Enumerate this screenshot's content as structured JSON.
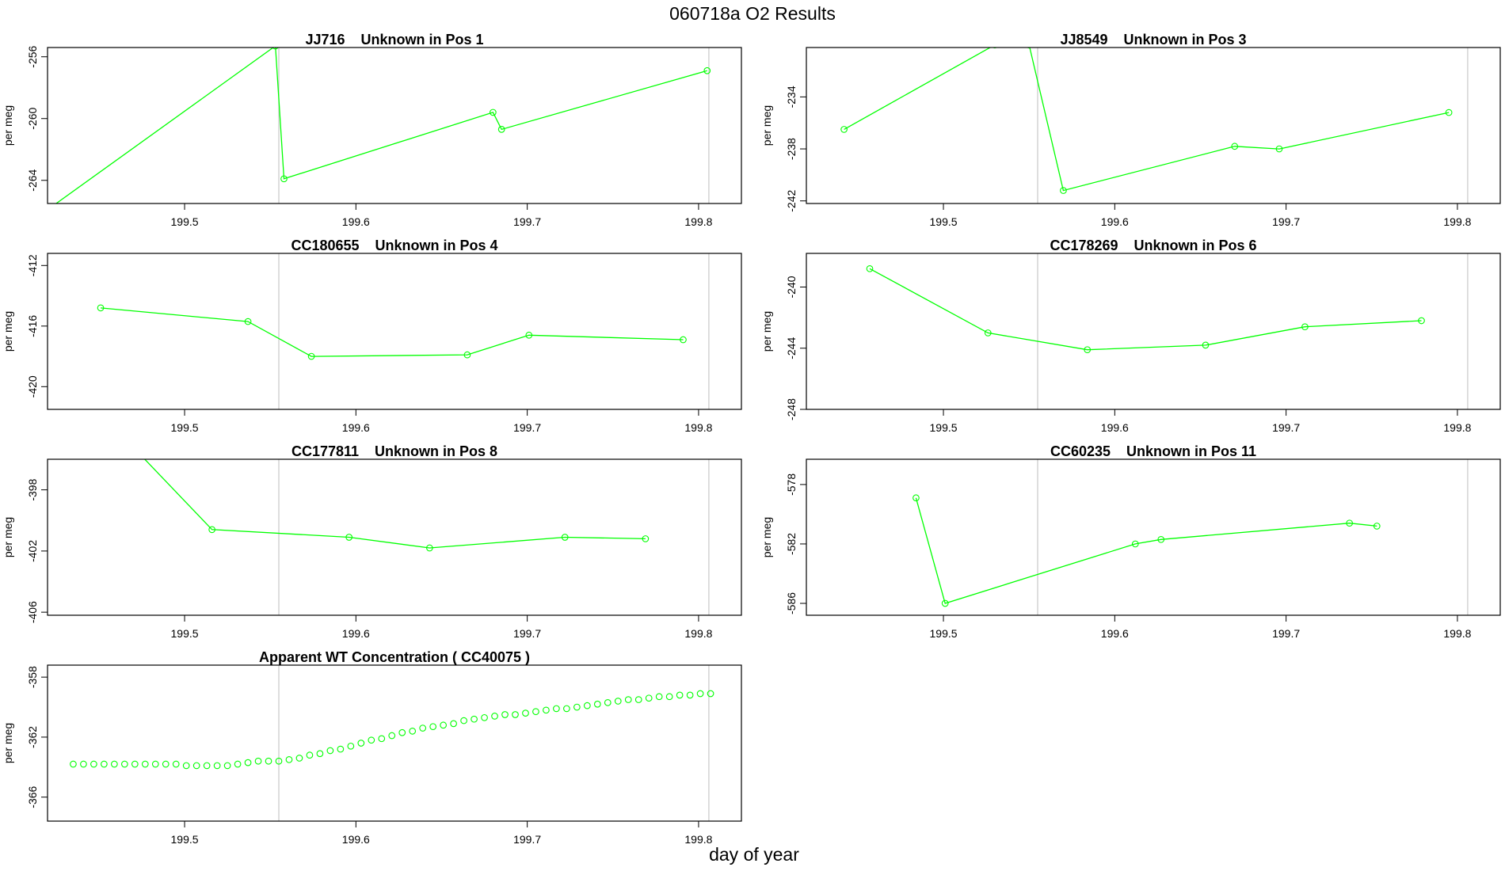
{
  "figure": {
    "title": "060718a  O2 Results",
    "xlabel": "day of year"
  },
  "chart_data": [
    {
      "type": "line",
      "title": "JJ716    Unknown in Pos 1",
      "ylabel": "per meg",
      "xlim": [
        199.42,
        199.825
      ],
      "ylim": [
        -265.5,
        -255.4
      ],
      "xticks": [
        199.5,
        199.6,
        199.7,
        199.8
      ],
      "yticks": [
        -256,
        -260,
        -264
      ],
      "vlines": [
        199.555,
        199.806
      ],
      "color": "#00ff00",
      "x": [
        199.4,
        199.553,
        199.558,
        199.68,
        199.685,
        199.805
      ],
      "y": [
        -267.5,
        -255.3,
        -263.9,
        -259.6,
        -260.7,
        -256.9
      ]
    },
    {
      "type": "line",
      "title": "JJ8549    Unknown in Pos 3",
      "ylabel": "per meg",
      "xlim": [
        199.42,
        199.825
      ],
      "ylim": [
        -242.2,
        -230.2
      ],
      "xticks": [
        199.5,
        199.6,
        199.7,
        199.8
      ],
      "yticks": [
        -234,
        -238,
        -242
      ],
      "vlines": [
        199.555,
        199.806
      ],
      "color": "#00ff00",
      "x": [
        199.442,
        199.53,
        199.55,
        199.57,
        199.67,
        199.696,
        199.795
      ],
      "y": [
        -236.5,
        -230.0,
        -230.0,
        -241.2,
        -237.8,
        -238.0,
        -235.2
      ]
    },
    {
      "type": "line",
      "title": "CC180655    Unknown in Pos 4",
      "ylabel": "per meg",
      "xlim": [
        199.42,
        199.825
      ],
      "ylim": [
        -421.5,
        -411.2
      ],
      "xticks": [
        199.5,
        199.6,
        199.7,
        199.8
      ],
      "yticks": [
        -412,
        -416,
        -420
      ],
      "vlines": [
        199.555,
        199.806
      ],
      "color": "#00ff00",
      "x": [
        199.451,
        199.537,
        199.574,
        199.665,
        199.701,
        199.791
      ],
      "y": [
        -414.8,
        -415.7,
        -418.0,
        -417.9,
        -416.6,
        -416.9
      ]
    },
    {
      "type": "line",
      "title": "CC178269    Unknown in Pos 6",
      "ylabel": "per meg",
      "xlim": [
        199.42,
        199.825
      ],
      "ylim": [
        -248.0,
        -237.8
      ],
      "xticks": [
        199.5,
        199.6,
        199.7,
        199.8
      ],
      "yticks": [
        -240,
        -244,
        -248
      ],
      "vlines": [
        199.555,
        199.806
      ],
      "color": "#00ff00",
      "x": [
        199.457,
        199.526,
        199.584,
        199.653,
        199.711,
        199.779
      ],
      "y": [
        -238.8,
        -243.0,
        -244.1,
        -243.8,
        -242.6,
        -242.2
      ]
    },
    {
      "type": "line",
      "title": "CC177811    Unknown in Pos 8",
      "ylabel": "per meg",
      "xlim": [
        199.42,
        199.825
      ],
      "ylim": [
        -406.2,
        -396.0
      ],
      "xticks": [
        199.5,
        199.6,
        199.7,
        199.8
      ],
      "yticks": [
        -398,
        -402,
        -406
      ],
      "vlines": [
        199.555,
        199.806
      ],
      "color": "#00ff00",
      "x": [
        199.4,
        199.516,
        199.596,
        199.643,
        199.722,
        199.769
      ],
      "y": [
        -387.0,
        -400.6,
        -401.1,
        -401.8,
        -401.1,
        -401.2
      ]
    },
    {
      "type": "line",
      "title": "CC60235    Unknown in Pos 11",
      "ylabel": "per meg",
      "xlim": [
        199.42,
        199.825
      ],
      "ylim": [
        -586.8,
        -576.3
      ],
      "xticks": [
        199.5,
        199.6,
        199.7,
        199.8
      ],
      "yticks": [
        -578,
        -582,
        -586
      ],
      "vlines": [
        199.555,
        199.806
      ],
      "color": "#00ff00",
      "x": [
        199.484,
        199.501,
        199.612,
        199.627,
        199.737,
        199.753
      ],
      "y": [
        -578.9,
        -586.0,
        -582.0,
        -581.7,
        -580.6,
        -580.8
      ]
    },
    {
      "type": "scatter",
      "title": "Apparent WT Concentration ( CC40075 )",
      "ylabel": "per meg",
      "xlim": [
        199.42,
        199.825
      ],
      "ylim": [
        -367.6,
        -357.2
      ],
      "xticks": [
        199.5,
        199.6,
        199.7,
        199.8
      ],
      "yticks": [
        -358,
        -362,
        -366
      ],
      "vlines": [
        199.555,
        199.806
      ],
      "color": "#00ff00",
      "x": [
        199.435,
        199.441,
        199.447,
        199.453,
        199.459,
        199.465,
        199.471,
        199.477,
        199.483,
        199.489,
        199.495,
        199.501,
        199.507,
        199.513,
        199.519,
        199.525,
        199.531,
        199.537,
        199.543,
        199.549,
        199.555,
        199.561,
        199.567,
        199.573,
        199.579,
        199.585,
        199.591,
        199.597,
        199.603,
        199.609,
        199.615,
        199.621,
        199.627,
        199.633,
        199.639,
        199.645,
        199.651,
        199.657,
        199.663,
        199.669,
        199.675,
        199.681,
        199.687,
        199.693,
        199.699,
        199.705,
        199.711,
        199.717,
        199.723,
        199.729,
        199.735,
        199.741,
        199.747,
        199.753,
        199.759,
        199.765,
        199.771,
        199.777,
        199.783,
        199.789,
        199.795,
        199.801,
        199.807
      ],
      "y": [
        -363.8,
        -363.8,
        -363.8,
        -363.8,
        -363.8,
        -363.8,
        -363.8,
        -363.8,
        -363.8,
        -363.8,
        -363.8,
        -363.9,
        -363.9,
        -363.9,
        -363.9,
        -363.9,
        -363.8,
        -363.7,
        -363.6,
        -363.6,
        -363.6,
        -363.5,
        -363.4,
        -363.2,
        -363.1,
        -362.9,
        -362.8,
        -362.6,
        -362.4,
        -362.2,
        -362.1,
        -361.9,
        -361.7,
        -361.6,
        -361.4,
        -361.3,
        -361.2,
        -361.1,
        -360.9,
        -360.8,
        -360.7,
        -360.6,
        -360.5,
        -360.5,
        -360.4,
        -360.3,
        -360.2,
        -360.1,
        -360.1,
        -360.0,
        -359.9,
        -359.8,
        -359.7,
        -359.6,
        -359.5,
        -359.5,
        -359.4,
        -359.3,
        -359.3,
        -359.2,
        -359.2,
        -359.1,
        -359.1
      ]
    }
  ]
}
